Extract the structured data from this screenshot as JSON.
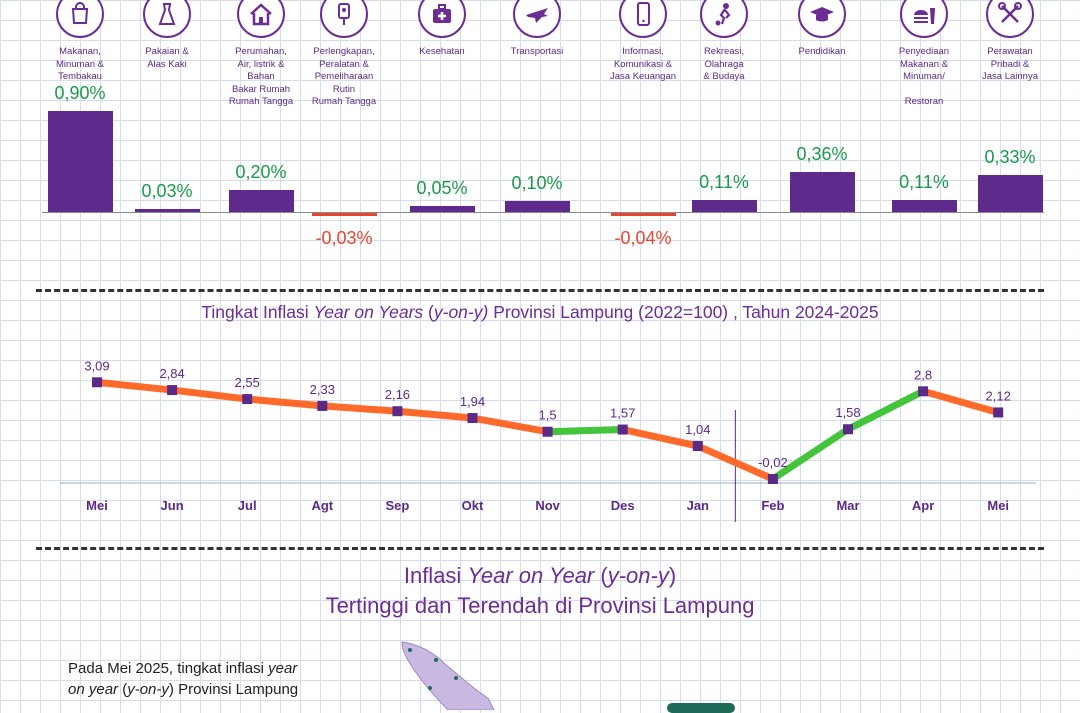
{
  "categories": [
    {
      "label": "Makanan,\nMinuman &\nTembakau",
      "value": "0,90%",
      "sign": "pos",
      "icon": "shopping-bag-icon"
    },
    {
      "label": "Pakaian &\nAlas Kaki",
      "value": "0,03%",
      "sign": "pos",
      "icon": "dress-icon"
    },
    {
      "label": "Perumahan,\nAir, listrik &\nBahan\nBakar Rumah\nRumah Tangga",
      "value": "0,20%",
      "sign": "pos",
      "icon": "house-icon"
    },
    {
      "label": "Perlengkapan,\nPeralatan &\nPemeliharaan\nRutin\nRumah Tangga",
      "value": "-0,03%",
      "sign": "neg",
      "icon": "plug-icon"
    },
    {
      "label": "Kesehatan",
      "value": "0,05%",
      "sign": "pos",
      "icon": "medical-kit-icon"
    },
    {
      "label": "Transportasi",
      "value": "0,10%",
      "sign": "pos",
      "icon": "airplane-icon"
    },
    {
      "label": "Informasi,\nKomunikasi &\nJasa Keuangan",
      "value": "-0,04%",
      "sign": "neg",
      "icon": "phone-icon"
    },
    {
      "label": "Rekreasi,\nOlahraga\n& Budaya",
      "value": "0,11%",
      "sign": "pos",
      "icon": "soccer-player-icon"
    },
    {
      "label": "Pendidikan",
      "value": "0,36%",
      "sign": "pos",
      "icon": "graduation-cap-icon"
    },
    {
      "label": "Penyediaan\nMakanan &\nMinuman/\n\nRestoran",
      "value": "0,11%",
      "sign": "pos",
      "icon": "burger-drink-icon"
    },
    {
      "label": "Perawatan\nPribadi &\nJasa Lainnya",
      "value": "0,33%",
      "sign": "pos",
      "icon": "scissors-comb-icon"
    }
  ],
  "yoy_title": {
    "pre": "Tingkat Inflasi ",
    "em1": "Year on Years",
    "mid": " (",
    "em2": "y-on-y)",
    "post": " Provinsi Lampung (2022=100) , Tahun 2024-2025"
  },
  "chart_data": {
    "type": "line",
    "title": "Tingkat Inflasi Year on Years (y-on-y) Provinsi Lampung (2022=100) , Tahun 2024-2025",
    "categories": [
      "Mei",
      "Jun",
      "Jul",
      "Agt",
      "Sep",
      "Okt",
      "Nov",
      "Des",
      "Jan",
      "Feb",
      "Mar",
      "Apr",
      "Mei"
    ],
    "values": [
      3.09,
      2.84,
      2.55,
      2.33,
      2.16,
      1.94,
      1.5,
      1.57,
      1.04,
      -0.02,
      1.58,
      2.8,
      2.12
    ],
    "labels": [
      "3,09",
      "2,84",
      "2,55",
      "2,33",
      "2,16",
      "1,94",
      "1,5",
      "1,57",
      "1,04",
      "-0,02",
      "1,58",
      "2,8",
      "2,12"
    ],
    "colors": {
      "down": "#ff6a2b",
      "up": "#43c43b",
      "point": "#5b2a86"
    },
    "divider_after": "Jan"
  },
  "section3": {
    "line1_pre": "Inflasi ",
    "line1_em": "Year on Year",
    "line1_post": " (",
    "line1_em2": "y-on-y",
    "line1_end": ")",
    "line2": "Tertinggi dan Terendah di Provinsi Lampung"
  },
  "paragraph": {
    "p1": "Pada Mei 2025, tingkat inflasi ",
    "p1_em": "year",
    "p2_em": "on year",
    "p2": " (",
    "p2_em2": "y-on-y",
    "p2_end": ") Provinsi Lampung"
  }
}
